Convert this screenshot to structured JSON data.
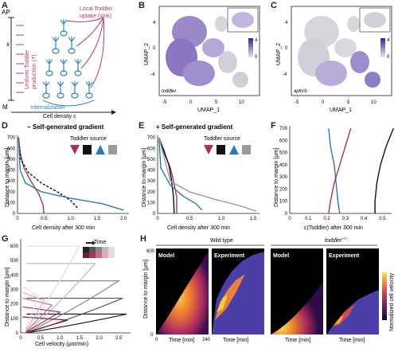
{
  "labels": {
    "A": "A",
    "B": "B",
    "C": "C",
    "D": "D",
    "E": "E",
    "F": "F",
    "G": "G",
    "H": "H"
  },
  "panelA": {
    "ap": "AP",
    "x": "x",
    "m": "M",
    "uniform_production": "Uniform Toddler",
    "uniform_production2": "production (",
    "uniform_production3": "T",
    "uniform_production4": ")",
    "local_uptake": "Local Toddler",
    "local_uptake2": "uptake (sink)",
    "internalization": "Internalization",
    "xaxis": "Cell density c",
    "colors": {
      "production": "#b03a6b",
      "internalization": "#2e86c1",
      "cells": "#2e86c1"
    }
  },
  "panelB": {
    "gene": "toddler",
    "xlabel": "UMAP_1",
    "ylabel": "UMAP_2",
    "xticks": [
      "-5",
      "0",
      "5",
      "10"
    ],
    "yticks": [
      "4",
      "0",
      "-4"
    ],
    "scale_max": "4",
    "scale_min": "0"
  },
  "panelC": {
    "gene": "aplnrb",
    "xlabel": "UMAP_1",
    "ylabel": "UMAP_2",
    "xticks": [
      "-5",
      "0",
      "5",
      "10"
    ],
    "yticks": [
      "4",
      "0",
      "-4"
    ],
    "scale_max": "4",
    "scale_min": "0"
  },
  "panelD": {
    "title": "− Self-generated gradient",
    "legend_title": "Toddler source",
    "ylabel": "Distance to margin [μm]",
    "xlabel": "Cell density after 300 min",
    "yticks": [
      "700",
      "600",
      "500",
      "400",
      "300",
      "200",
      "100",
      "0"
    ],
    "xticks": [
      "0",
      "0.5",
      "1.0",
      "1.5",
      "2.0"
    ]
  },
  "panelE": {
    "title": "+ Self-generated gradient",
    "legend_title": "Toddler source",
    "ylabel": "Distance to margin [μm]",
    "xlabel": "Cell density after 300 min",
    "yticks": [
      "700",
      "600",
      "500",
      "400",
      "300",
      "200",
      "100",
      "0"
    ],
    "xticks": [
      "0",
      "0.5",
      "1.0",
      "1.5"
    ]
  },
  "panelF": {
    "ylabel": "Distance to margin [μm]",
    "xlabel": "c(Toddler) after 300 min",
    "yticks": [
      "700",
      "600",
      "500",
      "400",
      "300",
      "200",
      "100",
      "0"
    ],
    "xticks": [
      "0",
      "0.1",
      "0.2",
      "0.3",
      "0.4",
      "0.5"
    ]
  },
  "panelG": {
    "legend_title": "Time",
    "ylabel": "Distance to margin [μm]",
    "xlabel": "Cell velocity (μm/min)",
    "yticks": [
      "600",
      "500",
      "400",
      "300",
      "200",
      "100",
      "0"
    ],
    "xticks": [
      "0",
      "0.5",
      "1.0",
      "1.5",
      "2.0",
      "2.5"
    ]
  },
  "panelH": {
    "wild_type": "Wild type",
    "mutant": "toddler",
    "mutant_sup": "−/−",
    "model": "Model",
    "experiment": "Experiment",
    "ylabel": "Distance to margin [μm]",
    "xlabel": "Time [min]",
    "y600": "600",
    "y0": "0",
    "x0": "0",
    "x240": "240",
    "colorbar_label": "Normalized cell velocity"
  },
  "colors": {
    "magenta": "#a8325e",
    "black": "#111111",
    "blue": "#2a7ab8",
    "gray": "#9a9a9a"
  },
  "chart_data": [
    {
      "type": "line",
      "panel": "D",
      "title": "− Self-generated gradient",
      "xlabel": "Cell density after 300 min",
      "ylabel": "Distance to margin [μm]",
      "xlim": [
        0,
        2.1
      ],
      "ylim": [
        0,
        720
      ],
      "legend": "Toddler source",
      "series": [
        {
          "color": "#a8325e",
          "x": [
            0.02,
            0.05,
            0.12,
            0.25,
            0.4,
            0.48,
            0.5
          ],
          "y": [
            700,
            560,
            420,
            300,
            180,
            80,
            0
          ]
        },
        {
          "color": "#111111",
          "dashed": true,
          "x": [
            0.02,
            0.06,
            0.2,
            0.45,
            0.75,
            1.0,
            1.15
          ],
          "y": [
            700,
            500,
            380,
            280,
            200,
            120,
            40
          ]
        },
        {
          "color": "#2a7ab8",
          "x": [
            0.02,
            0.05,
            0.15,
            0.45,
            1.0,
            1.6,
            2.0
          ],
          "y": [
            700,
            400,
            280,
            200,
            140,
            90,
            30
          ]
        }
      ]
    },
    {
      "type": "line",
      "panel": "E",
      "title": "+ Self-generated gradient",
      "xlabel": "Cell density after 300 min",
      "ylabel": "Distance to margin [μm]",
      "xlim": [
        0,
        1.6
      ],
      "ylim": [
        0,
        720
      ],
      "legend": "Toddler source",
      "series": [
        {
          "color": "#a8325e",
          "x": [
            0.02,
            0.1,
            0.2,
            0.25,
            0.3,
            0.3
          ],
          "y": [
            700,
            560,
            420,
            300,
            150,
            0
          ]
        },
        {
          "color": "#111111",
          "x": [
            0.02,
            0.1,
            0.18,
            0.22,
            0.25,
            0.26
          ],
          "y": [
            700,
            580,
            440,
            300,
            150,
            0
          ]
        },
        {
          "color": "#2a7ab8",
          "x": [
            0.02,
            0.05,
            0.2,
            0.4,
            0.6,
            0.7
          ],
          "y": [
            700,
            420,
            260,
            160,
            90,
            30
          ]
        },
        {
          "color": "#9a9a9a",
          "x": [
            0.02,
            0.2,
            0.5,
            0.9,
            1.3,
            1.55
          ],
          "y": [
            700,
            300,
            200,
            130,
            70,
            20
          ]
        }
      ]
    },
    {
      "type": "line",
      "panel": "F",
      "xlabel": "c(Toddler) after 300 min",
      "ylabel": "Distance to margin [μm]",
      "xlim": [
        0,
        0.55
      ],
      "ylim": [
        0,
        720
      ],
      "series": [
        {
          "color": "#2a7ab8",
          "x": [
            0.21,
            0.22,
            0.24,
            0.25,
            0.26,
            0.27
          ],
          "y": [
            700,
            550,
            400,
            250,
            100,
            0
          ]
        },
        {
          "color": "#a8325e",
          "x": [
            0.33,
            0.3,
            0.27,
            0.24,
            0.22,
            0.21
          ],
          "y": [
            700,
            550,
            400,
            250,
            100,
            0
          ]
        },
        {
          "color": "#111111",
          "x": [
            0.56,
            0.52,
            0.49,
            0.47,
            0.46,
            0.46
          ],
          "y": [
            700,
            550,
            400,
            250,
            100,
            0
          ]
        }
      ]
    },
    {
      "type": "line",
      "panel": "G",
      "xlabel": "Cell velocity (μm/min)",
      "ylabel": "Distance to margin [μm]",
      "xlim": [
        0,
        2.8
      ],
      "ylim": [
        0,
        650
      ],
      "legend": "Time"
    },
    {
      "type": "heatmap",
      "panel": "H",
      "xlabel": "Time [min]",
      "ylabel": "Distance to margin [μm]",
      "xlim": [
        0,
        240
      ],
      "ylim": [
        0,
        600
      ],
      "colorbar": "Normalized cell velocity"
    }
  ]
}
